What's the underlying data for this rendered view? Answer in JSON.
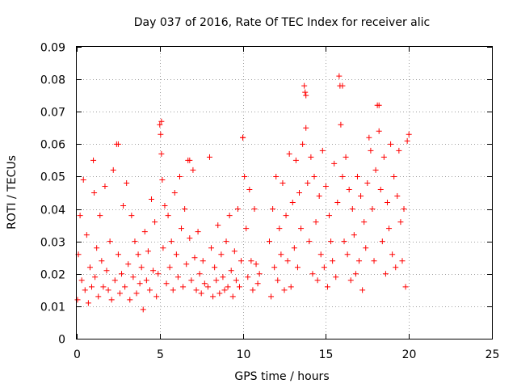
{
  "chart_data": {
    "type": "scatter",
    "title": "Day 037 of 2016, Rate Of TEC Index for receiver alic",
    "xlabel": "GPS time / hours",
    "ylabel": "ROTI / TECUs",
    "xlim": [
      0,
      25
    ],
    "ylim": [
      0,
      0.09
    ],
    "x_ticks": [
      0,
      5,
      10,
      15,
      20,
      25
    ],
    "x_tick_labels": [
      "0",
      "5",
      "10",
      "15",
      "20",
      "25"
    ],
    "y_ticks": [
      0,
      0.01,
      0.02,
      0.03,
      0.04,
      0.05,
      0.06,
      0.07,
      0.08,
      0.09
    ],
    "y_tick_labels": [
      "0",
      "0.01",
      "0.02",
      "0.03",
      "0.04",
      "0.05",
      "0.06",
      "0.07",
      "0.08",
      "0.09"
    ],
    "grid": true,
    "marker": "+",
    "color": "#ff0000",
    "series": [
      {
        "name": "ROTI",
        "x": [
          0.05,
          0.1,
          0.2,
          0.3,
          0.4,
          0.5,
          0.6,
          0.7,
          0.8,
          0.9,
          1.0,
          1.05,
          1.1,
          1.2,
          1.3,
          1.4,
          1.5,
          1.6,
          1.7,
          1.8,
          1.9,
          2.0,
          2.1,
          2.2,
          2.3,
          2.4,
          2.5,
          2.6,
          2.7,
          2.8,
          2.9,
          3.0,
          3.1,
          3.2,
          3.3,
          3.4,
          3.5,
          3.6,
          3.7,
          3.8,
          3.9,
          4.0,
          4.1,
          4.2,
          4.3,
          4.4,
          4.5,
          4.6,
          4.7,
          4.8,
          4.9,
          5.0,
          5.05,
          5.1,
          5.15,
          5.2,
          5.3,
          5.4,
          5.5,
          5.6,
          5.7,
          5.8,
          5.9,
          6.0,
          6.1,
          6.2,
          6.3,
          6.4,
          6.5,
          6.6,
          6.7,
          6.8,
          6.9,
          7.0,
          7.1,
          7.2,
          7.3,
          7.4,
          7.5,
          7.6,
          7.7,
          7.9,
          8.1,
          8.2,
          8.3,
          8.4,
          8.5,
          8.6,
          8.7,
          8.8,
          8.9,
          9.0,
          9.1,
          9.2,
          9.3,
          9.4,
          9.5,
          9.6,
          9.7,
          9.8,
          9.9,
          10.0,
          10.1,
          10.2,
          10.3,
          10.4,
          10.5,
          10.6,
          10.7,
          10.8,
          10.9,
          11.0,
          11.6,
          11.7,
          11.8,
          11.9,
          12.0,
          12.1,
          12.2,
          12.3,
          12.4,
          12.5,
          12.6,
          12.7,
          12.8,
          12.9,
          13.0,
          13.1,
          13.2,
          13.3,
          13.4,
          13.5,
          13.6,
          13.7,
          13.75,
          13.8,
          13.9,
          14.0,
          14.1,
          14.2,
          14.3,
          14.4,
          14.5,
          14.6,
          14.7,
          14.8,
          14.9,
          15.0,
          15.1,
          15.2,
          15.3,
          15.4,
          15.5,
          15.6,
          15.7,
          15.8,
          15.85,
          15.9,
          16.0,
          16.1,
          16.2,
          16.3,
          16.4,
          16.5,
          16.6,
          16.7,
          16.8,
          16.9,
          17.0,
          17.1,
          17.2,
          17.3,
          17.4,
          17.5,
          17.6,
          17.7,
          17.8,
          17.9,
          18.0,
          18.1,
          18.2,
          18.3,
          18.4,
          18.5,
          18.6,
          18.7,
          18.8,
          18.9,
          19.0,
          19.1,
          19.2,
          19.3,
          19.4,
          19.5,
          19.6,
          19.7,
          19.8,
          19.9,
          20.0,
          8.0,
          2.5,
          18.2,
          16.0,
          13.8,
          5.1,
          10.0,
          6.8
        ],
        "y": [
          0.012,
          0.026,
          0.038,
          0.018,
          0.049,
          0.015,
          0.032,
          0.011,
          0.022,
          0.016,
          0.055,
          0.045,
          0.019,
          0.028,
          0.013,
          0.038,
          0.024,
          0.016,
          0.047,
          0.021,
          0.015,
          0.03,
          0.012,
          0.052,
          0.018,
          0.06,
          0.026,
          0.014,
          0.02,
          0.041,
          0.016,
          0.048,
          0.023,
          0.012,
          0.038,
          0.019,
          0.03,
          0.014,
          0.026,
          0.017,
          0.022,
          0.009,
          0.033,
          0.018,
          0.027,
          0.015,
          0.043,
          0.021,
          0.036,
          0.013,
          0.02,
          0.066,
          0.063,
          0.057,
          0.049,
          0.028,
          0.041,
          0.017,
          0.038,
          0.022,
          0.03,
          0.015,
          0.045,
          0.026,
          0.019,
          0.05,
          0.034,
          0.016,
          0.04,
          0.023,
          0.055,
          0.031,
          0.018,
          0.052,
          0.025,
          0.015,
          0.033,
          0.02,
          0.014,
          0.024,
          0.017,
          0.016,
          0.028,
          0.013,
          0.022,
          0.018,
          0.035,
          0.014,
          0.026,
          0.019,
          0.015,
          0.03,
          0.016,
          0.038,
          0.021,
          0.013,
          0.027,
          0.018,
          0.04,
          0.016,
          0.024,
          0.062,
          0.05,
          0.034,
          0.019,
          0.046,
          0.024,
          0.015,
          0.04,
          0.023,
          0.017,
          0.02,
          0.03,
          0.013,
          0.04,
          0.022,
          0.05,
          0.018,
          0.034,
          0.026,
          0.048,
          0.015,
          0.038,
          0.024,
          0.057,
          0.016,
          0.042,
          0.028,
          0.055,
          0.022,
          0.045,
          0.034,
          0.06,
          0.078,
          0.076,
          0.065,
          0.048,
          0.03,
          0.056,
          0.02,
          0.05,
          0.036,
          0.018,
          0.044,
          0.026,
          0.058,
          0.022,
          0.047,
          0.016,
          0.038,
          0.03,
          0.024,
          0.054,
          0.019,
          0.042,
          0.081,
          0.078,
          0.066,
          0.05,
          0.03,
          0.056,
          0.026,
          0.046,
          0.018,
          0.04,
          0.032,
          0.02,
          0.05,
          0.024,
          0.044,
          0.015,
          0.036,
          0.028,
          0.048,
          0.062,
          0.058,
          0.04,
          0.024,
          0.052,
          0.072,
          0.064,
          0.046,
          0.03,
          0.056,
          0.02,
          0.042,
          0.034,
          0.06,
          0.026,
          0.05,
          0.022,
          0.044,
          0.058,
          0.036,
          0.024,
          0.04,
          0.016,
          0.061,
          0.063,
          0.056,
          0.06,
          0.072,
          0.078,
          0.075,
          0.067,
          0.062,
          0.055
        ]
      }
    ]
  }
}
